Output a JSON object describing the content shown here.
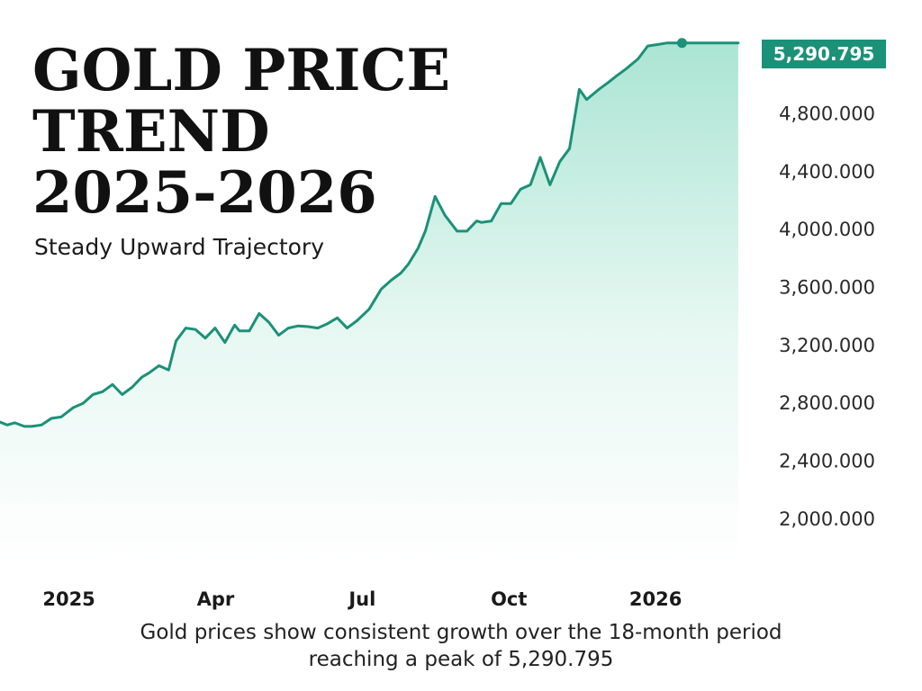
{
  "chart_data": {
    "type": "area",
    "title_lines": [
      "GOLD PRICE",
      "TREND",
      "2025-2026"
    ],
    "subtitle": "Steady Upward Trajectory",
    "y_ticks": [
      "2,000.000",
      "2,400.000",
      "2,800.000",
      "3,200.000",
      "3,600.000",
      "4,000.000",
      "4,400.000",
      "4,800.000"
    ],
    "y_tick_values": [
      2000,
      2400,
      2800,
      3200,
      3600,
      4000,
      4400,
      4800
    ],
    "x_ticks": [
      "2025",
      "Apr",
      "Jul",
      "Oct",
      "2026"
    ],
    "x_tick_values": [
      0,
      3,
      6,
      9,
      12
    ],
    "xlim": [
      -0.95,
      14.3
    ],
    "ylim": [
      1700,
      5370
    ],
    "grid": false,
    "line_color": "#1b9178",
    "fill_color": "#8fdcc4",
    "peak_label": "5,290.795",
    "peak_value": 5290.795,
    "caption_lines": [
      "Gold prices show consistent growth over the 18-month period",
      "reaching a peak of 5,290.795"
    ],
    "series": [
      {
        "x": [
          -0.95,
          -0.8,
          -0.65,
          -0.45,
          -0.3,
          -0.1,
          0.1,
          0.3,
          0.55,
          0.75,
          0.95,
          1.15,
          1.35,
          1.55,
          1.75,
          1.95,
          2.1,
          2.3,
          2.5,
          2.65,
          2.85,
          3.05,
          3.25,
          3.45,
          3.65,
          3.85,
          3.95,
          4.15,
          4.35,
          4.55,
          4.75,
          4.95,
          5.15,
          5.35,
          5.55,
          5.75,
          5.95,
          6.15,
          6.35,
          6.6,
          6.85,
          7.05,
          7.25,
          7.4,
          7.6,
          7.75,
          7.95,
          8.15,
          8.4,
          8.6,
          8.8,
          8.9,
          9.1,
          9.3,
          9.5,
          9.7,
          9.9,
          10.1,
          10.3,
          10.5,
          10.7,
          10.9,
          11.05,
          11.3,
          11.5,
          11.65,
          11.85,
          12.1,
          12.3,
          12.5,
          12.7,
          13.0,
          13.25,
          13.45,
          13.65,
          13.8,
          14.0,
          14.15
        ],
        "y": [
          2670,
          2650,
          2665,
          2640,
          2640,
          2650,
          2695,
          2705,
          2770,
          2800,
          2860,
          2880,
          2930,
          2860,
          2910,
          2980,
          3010,
          3060,
          3030,
          3230,
          3320,
          3310,
          3250,
          3320,
          3220,
          3340,
          3300,
          3300,
          3420,
          3360,
          3270,
          3320,
          3335,
          3330,
          3320,
          3350,
          3390,
          3320,
          3370,
          3450,
          3590,
          3650,
          3700,
          3760,
          3870,
          3990,
          4230,
          4100,
          3990,
          3990,
          4060,
          4050,
          4060,
          4180,
          4180,
          4280,
          4310,
          4500,
          4310,
          4470,
          4560,
          4970,
          4900,
          4970,
          5020,
          5060,
          5110,
          5180,
          5270,
          5280,
          5290.795,
          5290.795,
          5290.795,
          5290.795,
          5290.795,
          5290.795,
          5290.795,
          5290.795
        ]
      }
    ]
  }
}
